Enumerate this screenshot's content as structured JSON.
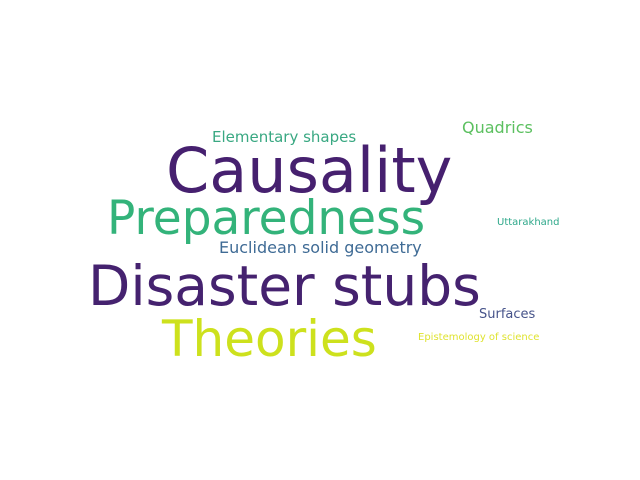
{
  "wordcloud": {
    "words": [
      {
        "text": "Causality",
        "color": "#46206f"
      },
      {
        "text": "Preparedness",
        "color": "#33b37a"
      },
      {
        "text": "Disaster stubs",
        "color": "#45226f"
      },
      {
        "text": "Theories",
        "color": "#cde11d"
      },
      {
        "text": "Elementary shapes",
        "color": "#39a882"
      },
      {
        "text": "Quadrics",
        "color": "#5cc060"
      },
      {
        "text": "Euclidean solid geometry",
        "color": "#3f6b95"
      },
      {
        "text": "Uttarakhand",
        "color": "#2ea88a"
      },
      {
        "text": "Surfaces",
        "color": "#46538a"
      },
      {
        "text": "Epistemology of science",
        "color": "#dfe330"
      }
    ]
  }
}
